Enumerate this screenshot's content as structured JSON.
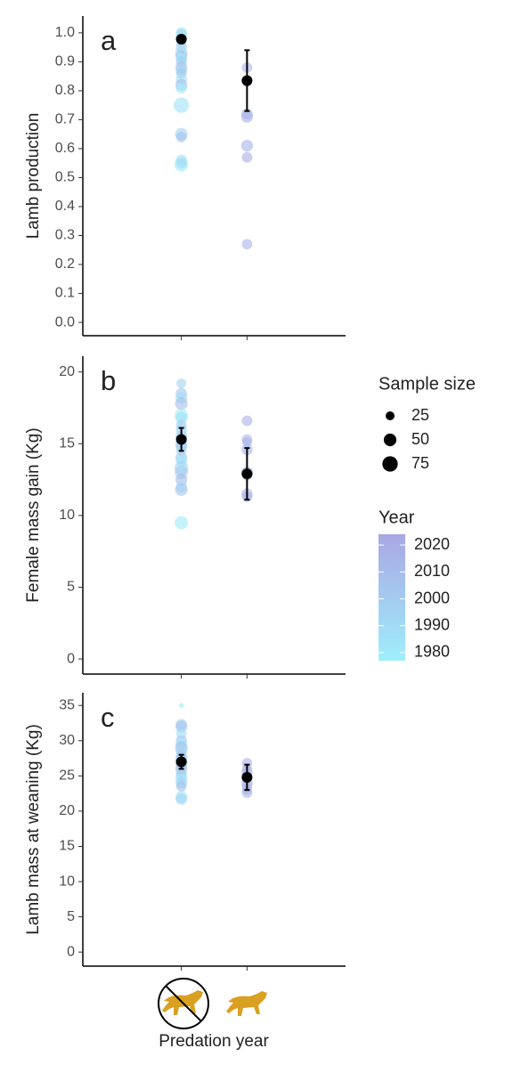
{
  "x_label": "Predation year",
  "legend": {
    "size_title": "Sample size",
    "size_values": [
      25,
      50,
      75
    ],
    "color_title": "Year",
    "color_ticks": [
      1980,
      1990,
      2000,
      2010,
      2020
    ],
    "color_lim": [
      1977,
      2024
    ],
    "color_low": "#9feefb",
    "color_high": "#a9a7e3"
  },
  "chart_data": [
    {
      "type": "scatter",
      "panel_label": "a",
      "y_label": "Lamb production",
      "categories": [
        null,
        null
      ],
      "ylim": [
        -0.046,
        1.058
      ],
      "yticks": [
        {
          "value": 0,
          "label": "0.0"
        },
        0.1,
        0.2,
        0.3,
        0.4,
        0.5,
        0.6,
        0.7,
        0.8,
        0.9,
        {
          "value": 1,
          "label": "1.0"
        }
      ],
      "series": [
        {
          "values": [
            1.0,
            0.995,
            0.98,
            0.965,
            0.95,
            0.93,
            0.92,
            0.91,
            0.9,
            0.88,
            0.87,
            0.86,
            0.84,
            0.82,
            0.81,
            0.75,
            0.65,
            0.64,
            0.56,
            0.55,
            0.545
          ],
          "sizes": [
            40,
            35,
            45,
            30,
            40,
            50,
            45,
            35,
            40,
            45,
            40,
            35,
            40,
            45,
            40,
            75,
            50,
            35,
            40,
            35,
            60
          ],
          "years": [
            1985,
            1990,
            1978,
            2000,
            1995,
            1988,
            2005,
            1982,
            1998,
            2008,
            1992,
            2003,
            1986,
            2010,
            1980,
            1984,
            1996,
            2006,
            1989,
            2002,
            1981
          ]
        },
        {
          "values": [
            0.88,
            0.83,
            0.72,
            0.71,
            0.61,
            0.57,
            0.27
          ],
          "sizes": [
            35,
            30,
            40,
            45,
            45,
            35,
            35
          ],
          "years": [
            2015,
            2018,
            2013,
            2019,
            2016,
            2020,
            2017
          ]
        }
      ],
      "means": [
        0.978,
        0.835
      ],
      "errors": [
        0.013,
        0.105
      ],
      "mean_color": "#000000"
    },
    {
      "type": "scatter",
      "panel_label": "b",
      "y_label": "Female mass gain (Kg)",
      "categories": [
        null,
        null
      ],
      "ylim": [
        -1.05,
        21.1
      ],
      "yticks": [
        0,
        5,
        10,
        15,
        20
      ],
      "series": [
        {
          "values": [
            19.2,
            18.5,
            18.2,
            17.8,
            17.0,
            16.8,
            16.3,
            16.0,
            15.5,
            15.0,
            14.8,
            14.5,
            14.0,
            13.8,
            13.3,
            13.0,
            12.5,
            12.0,
            11.8,
            9.5
          ],
          "sizes": [
            30,
            40,
            45,
            50,
            55,
            45,
            35,
            40,
            45,
            50,
            40,
            35,
            45,
            40,
            60,
            55,
            45,
            40,
            50,
            55
          ],
          "years": [
            1995,
            2005,
            1988,
            2009,
            1979,
            1984,
            2001,
            1992,
            1997,
            1986,
            2007,
            1990,
            2003,
            1982,
            1994,
            1999,
            2011,
            1987,
            2004,
            1980
          ]
        },
        {
          "values": [
            16.6,
            15.3,
            15.1,
            14.6,
            13.0,
            12.8,
            11.5,
            11.3
          ],
          "sizes": [
            35,
            35,
            30,
            40,
            45,
            35,
            40,
            35
          ],
          "years": [
            2019,
            2015,
            2017,
            2013,
            2020,
            2016,
            2018,
            2014
          ]
        }
      ],
      "means": [
        15.3,
        12.9
      ],
      "errors": [
        0.8,
        1.8
      ],
      "mean_color": "#000000"
    },
    {
      "type": "scatter",
      "panel_label": "c",
      "y_label": "Lamb mass at weaning (Kg)",
      "categories": [
        null,
        null
      ],
      "ylim": [
        -2,
        36.8
      ],
      "yticks": [
        0,
        5,
        10,
        15,
        20,
        25,
        30,
        35
      ],
      "series": [
        {
          "values": [
            35.0,
            32.3,
            32.0,
            31.0,
            30.0,
            29.5,
            29.0,
            28.5,
            28.0,
            27.5,
            27.0,
            26.5,
            26.0,
            25.5,
            25.0,
            24.5,
            24.0,
            23.5,
            22.0,
            21.7
          ],
          "sizes": [
            8,
            40,
            45,
            35,
            40,
            45,
            50,
            40,
            35,
            45,
            50,
            40,
            45,
            35,
            40,
            45,
            40,
            35,
            45,
            40
          ],
          "years": [
            1979,
            1996,
            2006,
            1988,
            2001,
            1983,
            2009,
            1992,
            1998,
            2004,
            1986,
            1994,
            2010,
            1990,
            2002,
            1981,
            1997,
            2007,
            1985,
            1993
          ]
        },
        {
          "values": [
            26.8,
            26.0,
            25.5,
            25.0,
            24.0,
            23.5,
            23.0,
            22.6
          ],
          "sizes": [
            35,
            30,
            40,
            35,
            40,
            35,
            30,
            35
          ],
          "years": [
            2016,
            2019,
            2014,
            2020,
            2013,
            2017,
            2018,
            2015
          ]
        }
      ],
      "means": [
        27.0,
        24.8
      ],
      "errors": [
        1.0,
        1.8
      ],
      "mean_color": "#000000"
    }
  ]
}
